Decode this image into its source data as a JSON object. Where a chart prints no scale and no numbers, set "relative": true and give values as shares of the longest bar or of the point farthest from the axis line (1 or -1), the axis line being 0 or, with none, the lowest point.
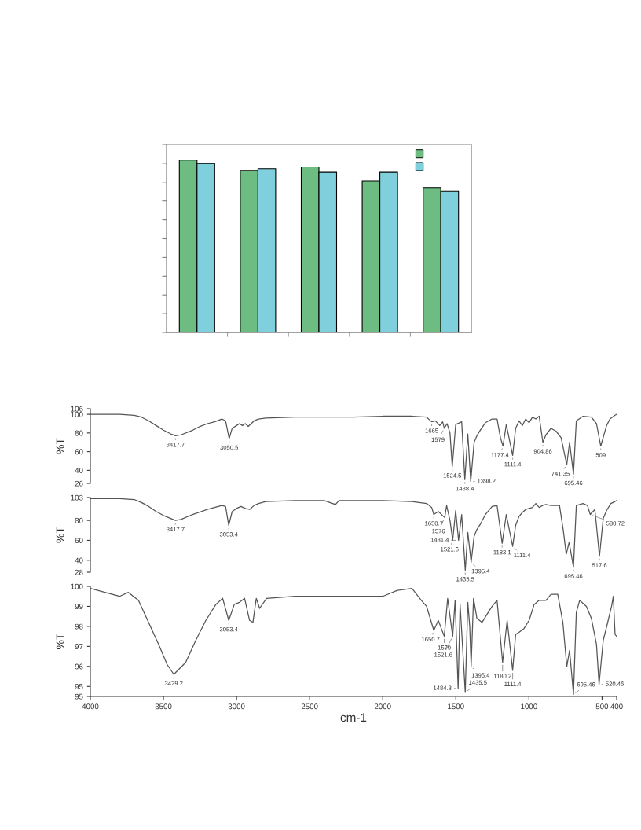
{
  "chart_data": [
    {
      "type": "bar",
      "categories": [
        null,
        null,
        null,
        null,
        null
      ],
      "relative": true,
      "series": [
        {
          "color": "#6dbd83",
          "values": [
            1.0,
            0.94,
            0.96,
            0.88,
            0.84
          ]
        },
        {
          "color": "#7fd0dc",
          "values": [
            0.98,
            0.95,
            0.93,
            0.93,
            0.82
          ]
        }
      ]
    },
    {
      "type": "line",
      "tick_labels": "y",
      "ylabel": "%T",
      "xlim": [
        4000,
        400
      ],
      "ylim": [
        26,
        106
      ],
      "yticks": [
        26,
        40,
        60,
        80,
        100,
        106
      ],
      "x": [
        4000,
        3900,
        3800,
        3700,
        3650,
        3600,
        3550,
        3500,
        3450,
        3417.7,
        3380,
        3300,
        3250,
        3200,
        3150,
        3100,
        3075,
        3050.5,
        3030,
        3000,
        2980,
        2960,
        2940,
        2920,
        2880,
        2850,
        2800,
        2600,
        2400,
        2200,
        2000,
        1800,
        1700,
        1665,
        1640,
        1610,
        1590,
        1579,
        1560,
        1540,
        1524.5,
        1501,
        1460,
        1438.4,
        1418,
        1398.2,
        1375,
        1356,
        1333,
        1298,
        1252,
        1218,
        1195,
        1177.4,
        1155,
        1111.4,
        1091,
        1068,
        1045,
        1022,
        999,
        976,
        953,
        930,
        904.86,
        884,
        849,
        815,
        780,
        760,
        741.35,
        722,
        695.46,
        676,
        630,
        573,
        538,
        509,
        469,
        446,
        411,
        400
      ],
      "series": [
        {
          "color": "#555555",
          "values": [
            100,
            100,
            100,
            99,
            97,
            93,
            88,
            83,
            79,
            77,
            78,
            83,
            87,
            90,
            92,
            95,
            93,
            74,
            85,
            88,
            90,
            88,
            90,
            87,
            93,
            95,
            96,
            97,
            97,
            97,
            98,
            98,
            97,
            92,
            93,
            88,
            92,
            85,
            90,
            80,
            44,
            89,
            92,
            30,
            79,
            28,
            70,
            77,
            83,
            91,
            95,
            95,
            75,
            66,
            89,
            56,
            85,
            93,
            88,
            95,
            91,
            97,
            95,
            98,
            70,
            78,
            85,
            82,
            75,
            60,
            46,
            70,
            36,
            93,
            98,
            97,
            90,
            66,
            88,
            95,
            99,
            100
          ]
        }
      ],
      "annotations": [
        {
          "text": "3417.7",
          "x": 3417.7,
          "y": 77
        },
        {
          "text": "3050.5",
          "x": 3050.5,
          "y": 74
        },
        {
          "text": "1665",
          "x": 1665,
          "y": 92
        },
        {
          "text": "1579",
          "x": 1579,
          "y": 85
        },
        {
          "text": "1524.5",
          "x": 1524.5,
          "y": 44
        },
        {
          "text": "1438.4",
          "x": 1438.4,
          "y": 30
        },
        {
          "text": "1398.2",
          "x": 1398.2,
          "y": 28
        },
        {
          "text": "1177.4",
          "x": 1177.4,
          "y": 66
        },
        {
          "text": "1111.4",
          "x": 1111.4,
          "y": 56
        },
        {
          "text": "904.86",
          "x": 904.86,
          "y": 70
        },
        {
          "text": "741.35",
          "x": 741.35,
          "y": 46
        },
        {
          "text": "695.46",
          "x": 695.46,
          "y": 36
        },
        {
          "text": "509",
          "x": 509,
          "y": 66
        }
      ]
    },
    {
      "type": "line",
      "tick_labels": "y",
      "ylabel": "%T",
      "xlim": [
        4000,
        400
      ],
      "ylim": [
        28,
        103
      ],
      "yticks": [
        28,
        40,
        60,
        80,
        103
      ],
      "x": [
        4000,
        3900,
        3800,
        3700,
        3650,
        3600,
        3550,
        3500,
        3450,
        3417.7,
        3380,
        3300,
        3200,
        3100,
        3075,
        3053.4,
        3030,
        3000,
        2970,
        2940,
        2910,
        2880,
        2850,
        2800,
        2600,
        2400,
        2323,
        2300,
        2200,
        2000,
        1800,
        1700,
        1665,
        1650.7,
        1620,
        1576,
        1563,
        1540,
        1521.6,
        1501,
        1481.4,
        1460,
        1435.5,
        1418,
        1395.4,
        1375,
        1356,
        1333,
        1298,
        1252,
        1218,
        1183.1,
        1155,
        1111.4,
        1091,
        1068,
        1045,
        1022,
        976,
        953,
        930,
        907,
        884,
        849,
        791,
        765,
        745,
        725,
        695.46,
        676,
        630,
        600,
        580.72,
        549,
        517.6,
        492,
        469,
        440,
        411,
        400
      ],
      "series": [
        {
          "color": "#555555",
          "values": [
            102,
            102,
            102,
            101,
            98,
            94,
            89,
            85,
            82,
            80,
            81,
            86,
            91,
            95,
            94,
            75,
            89,
            92,
            94,
            92,
            91,
            95,
            97,
            99,
            100,
            100,
            96,
            100,
            100,
            100,
            99,
            97,
            93,
            86,
            89,
            83,
            95,
            80,
            60,
            90,
            60,
            86,
            30,
            68,
            38,
            64,
            71,
            76,
            86,
            94,
            95,
            57,
            86,
            54,
            75,
            84,
            88,
            91,
            93,
            97,
            93,
            95,
            96,
            95,
            95,
            70,
            46,
            58,
            33,
            95,
            97,
            95,
            86,
            91,
            44,
            82,
            90,
            97,
            99,
            100
          ]
        }
      ],
      "annotations": [
        {
          "text": "3417.7",
          "x": 3417.7,
          "y": 80
        },
        {
          "text": "3053.4",
          "x": 3053.4,
          "y": 75
        },
        {
          "text": "1650.7",
          "x": 1650.7,
          "y": 86
        },
        {
          "text": "1576",
          "x": 1576,
          "y": 83
        },
        {
          "text": "1521.6",
          "x": 1521.6,
          "y": 60
        },
        {
          "text": "1481.4",
          "x": 1481.4,
          "y": 60
        },
        {
          "text": "1435.5",
          "x": 1435.5,
          "y": 30
        },
        {
          "text": "1395.4",
          "x": 1395.4,
          "y": 38
        },
        {
          "text": "1183.1",
          "x": 1183.1,
          "y": 57
        },
        {
          "text": "1111.4",
          "x": 1111.4,
          "y": 54
        },
        {
          "text": "695.46",
          "x": 695.46,
          "y": 33
        },
        {
          "text": "580.72",
          "x": 580.72,
          "y": 86
        },
        {
          "text": "517.6",
          "x": 517.6,
          "y": 44
        }
      ]
    },
    {
      "type": "line",
      "ylabel": "%T",
      "xlabel": "cm-1",
      "xlim": [
        4000,
        400
      ],
      "xticks": [
        4000,
        3500,
        3000,
        2500,
        2000,
        1500,
        1000,
        500,
        400
      ],
      "ylim": [
        94.5,
        100
      ],
      "yticks": [
        {
          "value": 94.5,
          "label": "95"
        },
        95,
        96,
        97,
        98,
        99,
        100
      ],
      "x": [
        4000,
        3900,
        3800,
        3740,
        3671,
        3602,
        3533,
        3475,
        3429.2,
        3348,
        3279,
        3210,
        3141,
        3095,
        3053.4,
        3015,
        2980,
        2945,
        2911,
        2888,
        2865,
        2842,
        2795,
        2600,
        2400,
        2200,
        2000,
        1900,
        1800,
        1736,
        1700,
        1650.7,
        1620,
        1579,
        1556,
        1521.6,
        1505,
        1484.3,
        1471,
        1435.5,
        1418,
        1405,
        1395.4,
        1379,
        1356,
        1321,
        1287,
        1252,
        1218,
        1180.2,
        1149,
        1111.4,
        1091,
        1068,
        1033,
        999,
        964,
        930,
        884,
        849,
        803,
        768,
        741,
        722,
        695.46,
        676,
        653,
        607,
        573,
        538,
        520.46,
        492,
        458,
        435,
        423,
        411,
        400
      ],
      "series": [
        {
          "color": "#555555",
          "values": [
            99.9,
            99.7,
            99.5,
            99.7,
            99.3,
            98.2,
            97.1,
            96.1,
            95.6,
            96.2,
            97.3,
            98.3,
            99.1,
            99.4,
            98.3,
            99.1,
            99.2,
            99.4,
            98.3,
            98.2,
            99.4,
            98.9,
            99.4,
            99.5,
            99.5,
            99.5,
            99.5,
            99.8,
            99.9,
            99.3,
            99.0,
            97.8,
            98.3,
            97.5,
            99.4,
            97.5,
            99.3,
            94.9,
            99.1,
            94.7,
            99.2,
            98.0,
            96.0,
            99.4,
            98.4,
            98.2,
            98.6,
            99.0,
            99.3,
            96.2,
            98.3,
            95.8,
            97.6,
            97.7,
            97.9,
            98.3,
            99.1,
            99.3,
            99.3,
            99.6,
            99.6,
            98.2,
            96.0,
            96.8,
            94.6,
            98.7,
            99.3,
            99.0,
            98.4,
            97.1,
            95.1,
            97.3,
            98.3,
            99.0,
            99.5,
            97.6,
            97.5
          ]
        }
      ],
      "annotations": [
        {
          "text": "3429.2",
          "x": 3429.2,
          "y": 95.6
        },
        {
          "text": "3053.4",
          "x": 3053.4,
          "y": 98.3
        },
        {
          "text": "1650.7",
          "x": 1650.7,
          "y": 97.8
        },
        {
          "text": "1579",
          "x": 1579,
          "y": 97.5
        },
        {
          "text": "1521.6",
          "x": 1521.6,
          "y": 97.5
        },
        {
          "text": "1484.3",
          "x": 1484.3,
          "y": 94.9
        },
        {
          "text": "1435.5",
          "x": 1435.5,
          "y": 94.7
        },
        {
          "text": "1395.4",
          "x": 1395.4,
          "y": 96.0
        },
        {
          "text": "1180.2",
          "x": 1180.2,
          "y": 96.2
        },
        {
          "text": "1111.4",
          "x": 1111.4,
          "y": 95.8
        },
        {
          "text": "695.46",
          "x": 695.46,
          "y": 94.6
        },
        {
          "text": "520.46",
          "x": 520.46,
          "y": 95.1
        }
      ]
    }
  ]
}
